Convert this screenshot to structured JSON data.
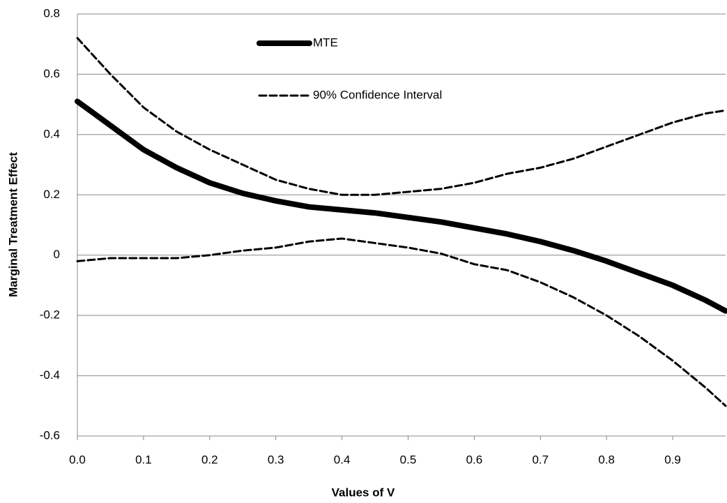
{
  "chart_data": {
    "type": "line",
    "x_label": "Values of V",
    "y_label": "Marginal Treatment Effect",
    "x": [
      0,
      0.05,
      0.1,
      0.15,
      0.2,
      0.25,
      0.3,
      0.35,
      0.4,
      0.45,
      0.5,
      0.55,
      0.6,
      0.65,
      0.7,
      0.75,
      0.8,
      0.85,
      0.9,
      0.95,
      0.98
    ],
    "series": [
      {
        "name": "MTE",
        "color": "#000000",
        "style": "solid",
        "values": [
          0.51,
          0.43,
          0.35,
          0.29,
          0.24,
          0.205,
          0.18,
          0.16,
          0.15,
          0.14,
          0.125,
          0.11,
          0.09,
          0.07,
          0.045,
          0.015,
          -0.02,
          -0.06,
          -0.1,
          -0.15,
          -0.185
        ]
      },
      {
        "name": "90% Confidence Interval",
        "color": "#000000",
        "style": "dashed",
        "values": [
          0.72,
          0.6,
          0.49,
          0.41,
          0.35,
          0.3,
          0.25,
          0.22,
          0.2,
          0.2,
          0.21,
          0.22,
          0.24,
          0.27,
          0.29,
          0.32,
          0.36,
          0.4,
          0.44,
          0.47,
          0.48
        ]
      },
      {
        "color": "#000000",
        "style": "dashed",
        "values": [
          -0.02,
          -0.01,
          -0.01,
          -0.01,
          0,
          0.015,
          0.025,
          0.045,
          0.055,
          0.04,
          0.025,
          0.005,
          -0.03,
          -0.05,
          -0.09,
          -0.14,
          -0.2,
          -0.27,
          -0.35,
          -0.44,
          -0.5
        ]
      }
    ],
    "xlim": [
      0,
      0.98
    ],
    "xticks": [
      {
        "value": 0,
        "label": "0.0"
      },
      0.1,
      0.2,
      0.3,
      0.4,
      0.5,
      0.6,
      0.7,
      0.8,
      0.9
    ],
    "ylim": [
      -0.6,
      0.8
    ],
    "yticks": [
      -0.6,
      -0.4,
      -0.2,
      0,
      0.2,
      0.4,
      0.6,
      0.8
    ],
    "grid": true
  }
}
